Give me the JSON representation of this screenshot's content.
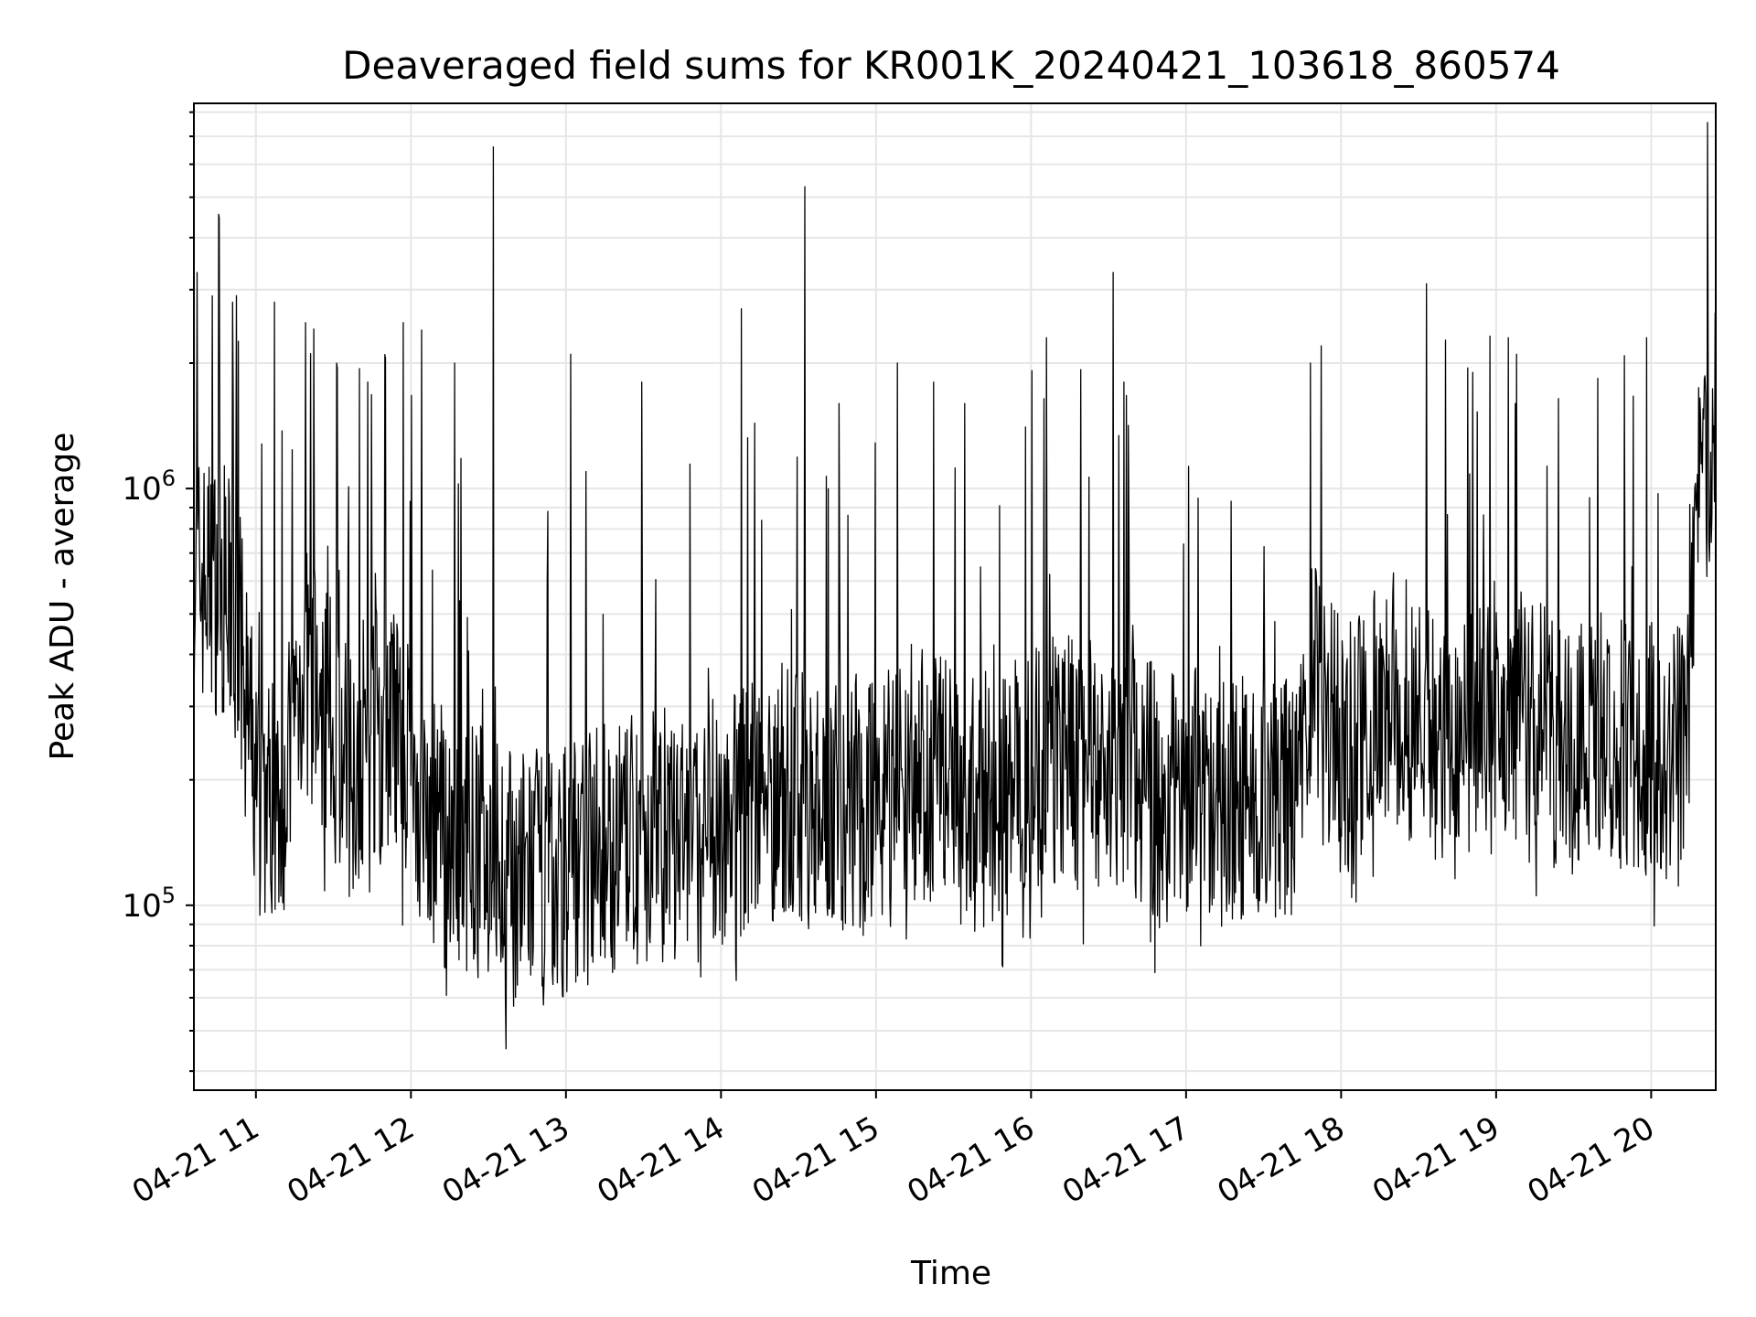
{
  "chart_data": {
    "type": "line",
    "title": "Deaveraged field sums for KR001K_20240421_103618_860574",
    "xlabel": "Time",
    "ylabel": "Peak ADU - average",
    "y_scale": "log",
    "ylim": [
      36000,
      8400000
    ],
    "xlim": [
      "04-21 10:36",
      "04-21 20:25"
    ],
    "x_ticks": [
      "04-21 11",
      "04-21 12",
      "04-21 13",
      "04-21 14",
      "04-21 15",
      "04-21 16",
      "04-21 17",
      "04-21 18",
      "04-21 19",
      "04-21 20"
    ],
    "y_ticks": [
      {
        "base": "10",
        "exp": "5",
        "value": 100000
      },
      {
        "base": "10",
        "exp": "6",
        "value": 1000000
      }
    ],
    "grid": true,
    "line_color": "#000000",
    "series": [
      {
        "x_hours": [
          10.6,
          10.7,
          10.8,
          10.9,
          11.0,
          11.1,
          11.2,
          11.3,
          11.4,
          11.5,
          11.6,
          11.7,
          11.8,
          11.9,
          12.0,
          12.1,
          12.2,
          12.3,
          12.4,
          12.5,
          12.6,
          12.7,
          12.8,
          12.9,
          13.0,
          13.1,
          13.2,
          13.3,
          13.4,
          13.5,
          13.6,
          13.7,
          13.8,
          13.9,
          14.0,
          14.1,
          14.2,
          14.3,
          14.4,
          14.5,
          14.6,
          14.7,
          14.8,
          14.9,
          15.0,
          15.1,
          15.2,
          15.3,
          15.4,
          15.5,
          15.6,
          15.7,
          15.8,
          15.9,
          16.0,
          16.1,
          16.2,
          16.3,
          16.4,
          16.5,
          16.6,
          16.7,
          16.8,
          16.9,
          17.0,
          17.1,
          17.2,
          17.3,
          17.4,
          17.5,
          17.6,
          17.7,
          17.8,
          17.9,
          18.0,
          18.1,
          18.2,
          18.3,
          18.4,
          18.5,
          18.6,
          18.7,
          18.8,
          18.9,
          19.0,
          19.1,
          19.2,
          19.3,
          19.4,
          19.5,
          19.6,
          19.7,
          19.8,
          19.9,
          20.0,
          20.1,
          20.2,
          20.3,
          20.4
        ],
        "baseline": [
          620000,
          600000,
          560000,
          420000,
          190000,
          180000,
          200000,
          380000,
          310000,
          260000,
          210000,
          250000,
          270000,
          260000,
          200000,
          160000,
          150000,
          140000,
          135000,
          135000,
          120000,
          115000,
          120000,
          115000,
          125000,
          135000,
          140000,
          135000,
          140000,
          145000,
          150000,
          140000,
          145000,
          150000,
          160000,
          170000,
          175000,
          180000,
          190000,
          185000,
          175000,
          180000,
          175000,
          185000,
          190000,
          200000,
          210000,
          205000,
          200000,
          210000,
          190000,
          180000,
          185000,
          190000,
          215000,
          230000,
          225000,
          220000,
          215000,
          220000,
          210000,
          200000,
          190000,
          185000,
          180000,
          185000,
          180000,
          180000,
          180000,
          175000,
          180000,
          175000,
          330000,
          300000,
          240000,
          250000,
          300000,
          320000,
          300000,
          280000,
          260000,
          270000,
          260000,
          275000,
          265000,
          290000,
          300000,
          280000,
          240000,
          250000,
          260000,
          255000,
          250000,
          240000,
          240000,
          235000,
          230000,
          1100000,
          1300000
        ],
        "spikes": [
          {
            "hour": 10.62,
            "value": 3300000
          },
          {
            "hour": 10.72,
            "value": 2900000
          },
          {
            "hour": 10.85,
            "value": 2800000
          },
          {
            "hour": 11.12,
            "value": 2800000
          },
          {
            "hour": 11.32,
            "value": 2500000
          },
          {
            "hour": 11.52,
            "value": 2000000
          },
          {
            "hour": 11.72,
            "value": 1800000
          },
          {
            "hour": 11.95,
            "value": 2500000
          },
          {
            "hour": 12.07,
            "value": 2400000
          },
          {
            "hour": 12.28,
            "value": 2000000
          },
          {
            "hour": 12.53,
            "value": 6600000
          },
          {
            "hour": 13.03,
            "value": 2100000
          },
          {
            "hour": 13.49,
            "value": 1800000
          },
          {
            "hour": 14.13,
            "value": 2700000
          },
          {
            "hour": 14.54,
            "value": 5300000
          },
          {
            "hour": 14.76,
            "value": 1600000
          },
          {
            "hour": 15.14,
            "value": 2000000
          },
          {
            "hour": 15.37,
            "value": 1800000
          },
          {
            "hour": 15.57,
            "value": 1600000
          },
          {
            "hour": 16.1,
            "value": 2300000
          },
          {
            "hour": 16.53,
            "value": 3300000
          },
          {
            "hour": 16.6,
            "value": 1800000
          },
          {
            "hour": 17.8,
            "value": 2000000
          },
          {
            "hour": 17.87,
            "value": 2200000
          },
          {
            "hour": 18.55,
            "value": 3100000
          },
          {
            "hour": 18.85,
            "value": 1900000
          },
          {
            "hour": 19.08,
            "value": 2300000
          },
          {
            "hour": 19.13,
            "value": 2100000
          },
          {
            "hour": 19.97,
            "value": 2300000
          }
        ]
      }
    ]
  }
}
